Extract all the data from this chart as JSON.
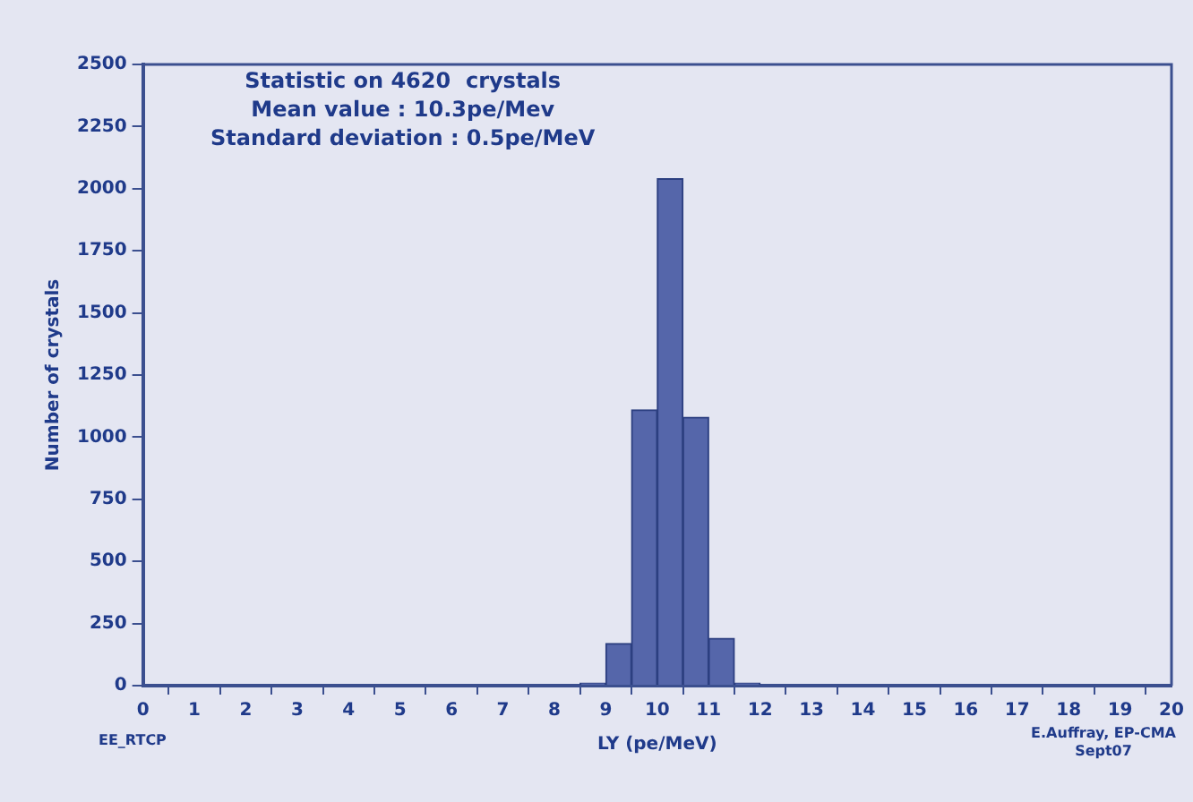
{
  "chart_data": {
    "type": "histogram",
    "xlabel": "LY (pe/MeV)",
    "ylabel": "Number of crystals",
    "bins": [
      8.5,
      9,
      9.5,
      10,
      10.5,
      11,
      11.5,
      12
    ],
    "values": [
      10,
      170,
      1110,
      2040,
      1080,
      190,
      10
    ],
    "color": "#5566aa",
    "xlim": [
      0,
      20
    ],
    "xticks": [
      0,
      1,
      2,
      3,
      4,
      5,
      6,
      7,
      8,
      9,
      10,
      11,
      12,
      13,
      14,
      15,
      16,
      17,
      18,
      19,
      20
    ],
    "ylim": [
      0,
      2500
    ],
    "yticks": [
      0,
      250,
      500,
      750,
      1000,
      1250,
      1500,
      1750,
      2000,
      2250,
      2500
    ],
    "grid": false,
    "annotations": [
      "Statistic on 4620  crystals",
      "Mean value : 10.3pe/Mev",
      "Standard deviation : 0.5pe/MeV",
      "EE_RTCP",
      "E.Auffray, EP-CMA",
      "Sept07"
    ]
  }
}
